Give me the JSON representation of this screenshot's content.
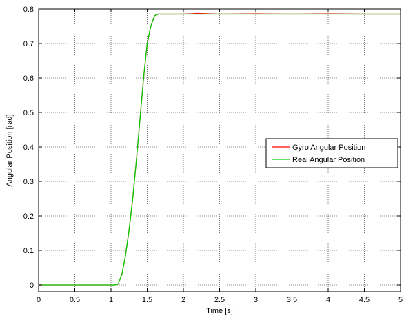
{
  "chart_data": {
    "type": "line",
    "title": "",
    "xlabel": "Time [s]",
    "ylabel": "Angular Position [rad]",
    "xlim": [
      0,
      5
    ],
    "ylim": [
      -0.02,
      0.8
    ],
    "xticks": [
      0,
      0.5,
      1,
      1.5,
      2,
      2.5,
      3,
      3.5,
      4,
      4.5,
      5
    ],
    "xtick_labels": [
      "0",
      "0.5",
      "1",
      "1.5",
      "2",
      "2.5",
      "3",
      "3.5",
      "4",
      "4.5",
      "5"
    ],
    "yticks": [
      0,
      0.1,
      0.2,
      0.3,
      0.4,
      0.5,
      0.6,
      0.7,
      0.8
    ],
    "ytick_labels": [
      "0",
      "0.1",
      "0.2",
      "0.3",
      "0.4",
      "0.5",
      "0.6",
      "0.7",
      "0.8"
    ],
    "grid": true,
    "legend_position": "center-right",
    "series": [
      {
        "name": "Gyro Angular Position",
        "color": "#ff0000",
        "x": [
          0,
          1.05,
          1.1,
          1.15,
          1.2,
          1.25,
          1.3,
          1.35,
          1.4,
          1.45,
          1.5,
          1.55,
          1.6,
          1.65,
          2.0,
          2.2,
          2.5,
          3.0,
          3.5,
          4.0,
          4.5,
          5.0
        ],
        "y": [
          0,
          0,
          0.003,
          0.03,
          0.085,
          0.16,
          0.25,
          0.36,
          0.48,
          0.6,
          0.7,
          0.75,
          0.78,
          0.785,
          0.785,
          0.787,
          0.785,
          0.786,
          0.785,
          0.786,
          0.785,
          0.785
        ]
      },
      {
        "name": "Real Angular Position",
        "color": "#00cc00",
        "x": [
          0,
          1.05,
          1.1,
          1.15,
          1.2,
          1.25,
          1.3,
          1.35,
          1.4,
          1.45,
          1.5,
          1.55,
          1.6,
          1.65,
          2.0,
          2.2,
          2.5,
          3.0,
          3.5,
          4.0,
          4.5,
          5.0
        ],
        "y": [
          0,
          0,
          0.003,
          0.03,
          0.085,
          0.16,
          0.25,
          0.36,
          0.48,
          0.6,
          0.7,
          0.75,
          0.78,
          0.785,
          0.785,
          0.785,
          0.785,
          0.785,
          0.785,
          0.785,
          0.785,
          0.785
        ]
      }
    ]
  }
}
